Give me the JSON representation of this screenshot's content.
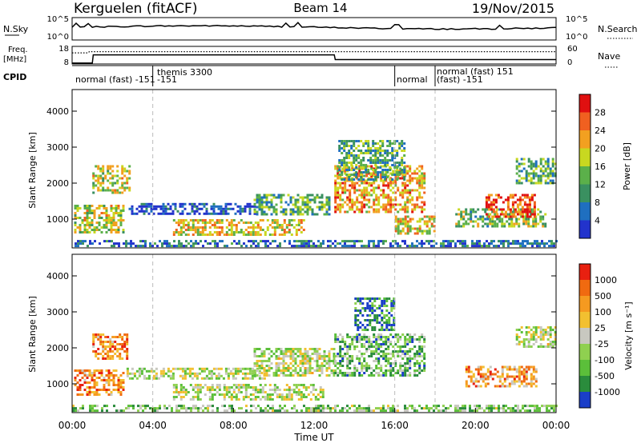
{
  "header": {
    "station": "Kerguelen (fitACF)",
    "beam": "Beam 14",
    "date": "19/Nov/2015"
  },
  "chart_data": [
    {
      "panel": "noise",
      "type": "line",
      "left_label": "N.Sky",
      "left_ticks": [
        "10^5",
        "10^0"
      ],
      "right_ticks": [
        "10^5",
        "10^0"
      ],
      "right_legend": "N.Search"
    },
    {
      "panel": "frequency-nave",
      "type": "line",
      "left_label": "Freq.",
      "left_unit": "[MHz]",
      "left_ticks": [
        18,
        8
      ],
      "right_ticks": [
        60,
        0
      ],
      "right_legend": "Nave",
      "freq_series": {
        "x": [
          0,
          1.0,
          1.05,
          13.0,
          13.05,
          24
        ],
        "y": [
          8.5,
          8.5,
          13.2,
          13.2,
          10.5,
          10.5
        ]
      },
      "nave_series": {
        "x": [
          0,
          0.8,
          0.85,
          24
        ],
        "y": [
          38,
          38,
          42,
          42
        ]
      }
    },
    {
      "panel": "cpid",
      "type": "table",
      "label": "CPID",
      "modes": [
        {
          "line1": "normal (fast) -151",
          "line2": ""
        },
        {
          "line1": "themis 3300",
          "line2": "-151"
        },
        {
          "line1": "normal",
          "line2": ""
        },
        {
          "line1": "normal (fast) 151",
          "line2": "(fast) -151"
        }
      ],
      "mode_boundaries_h": [
        0,
        4,
        16,
        18,
        24
      ]
    },
    {
      "panel": "power",
      "type": "heatmap",
      "ylabel": "Slant Range [km]",
      "yticks": [
        1000,
        2000,
        3000,
        4000
      ],
      "ylim": [
        200,
        4600
      ],
      "xlim_h": [
        0,
        24
      ],
      "colorbar_label": "Power [dB]",
      "colorbar_ticks": [
        4,
        8,
        12,
        16,
        20,
        24,
        28
      ],
      "colorbar_colors": [
        "#2233cc",
        "#1f6fc0",
        "#3a9060",
        "#5bb04a",
        "#c8d820",
        "#f2a020",
        "#f06020",
        "#e01010"
      ],
      "echo_regions": [
        {
          "t0": 0.1,
          "t1": 2.5,
          "r0": 600,
          "r1": 1400,
          "level": 0.55
        },
        {
          "t0": 1.0,
          "t1": 2.8,
          "r0": 1700,
          "r1": 2500,
          "level": 0.55
        },
        {
          "t0": 2.8,
          "t1": 9.0,
          "r0": 1150,
          "r1": 1450,
          "level": 0.1
        },
        {
          "t0": 5.0,
          "t1": 11.5,
          "r0": 550,
          "r1": 1000,
          "level": 0.6
        },
        {
          "t0": 9.0,
          "t1": 12.8,
          "r0": 1100,
          "r1": 1700,
          "level": 0.4
        },
        {
          "t0": 13.0,
          "t1": 17.5,
          "r0": 1200,
          "r1": 2500,
          "level": 0.7
        },
        {
          "t0": 13.2,
          "t1": 16.5,
          "r0": 2100,
          "r1": 3200,
          "level": 0.35
        },
        {
          "t0": 16.0,
          "t1": 18.0,
          "r0": 600,
          "r1": 1100,
          "level": 0.6
        },
        {
          "t0": 19.0,
          "t1": 23.5,
          "r0": 800,
          "r1": 1300,
          "level": 0.45
        },
        {
          "t0": 20.5,
          "t1": 23.0,
          "r0": 1050,
          "r1": 1700,
          "level": 0.85
        },
        {
          "t0": 22.0,
          "t1": 24.0,
          "r0": 2000,
          "r1": 2700,
          "level": 0.4
        },
        {
          "t0": 0.0,
          "t1": 24.0,
          "r0": 250,
          "r1": 420,
          "level": 0.2
        }
      ]
    },
    {
      "panel": "velocity",
      "type": "heatmap",
      "ylabel": "Slant Range [km]",
      "yticks": [
        1000,
        2000,
        3000,
        4000
      ],
      "ylim": [
        200,
        4600
      ],
      "xlim_h": [
        0,
        24
      ],
      "xticks": [
        "00:00",
        "04:00",
        "08:00",
        "12:00",
        "16:00",
        "20:00",
        "00:00"
      ],
      "xlabel": "Time UT",
      "colorbar_label": "Velocity [m s⁻¹]",
      "colorbar_ticks": [
        1000,
        500,
        100,
        25,
        -25,
        -100,
        -500,
        -1000
      ],
      "colorbar_colors": [
        "#1a3ec8",
        "#2a8c3c",
        "#5bbf3a",
        "#8fd050",
        "#c8c8c0",
        "#f2c030",
        "#f59a20",
        "#f06a10",
        "#e82010"
      ],
      "echo_regions": [
        {
          "t0": 0.1,
          "t1": 2.6,
          "r0": 700,
          "r1": 1400,
          "level": 0.75
        },
        {
          "t0": 1.0,
          "t1": 2.7,
          "r0": 1700,
          "r1": 2400,
          "level": 0.75
        },
        {
          "t0": 2.7,
          "t1": 9.5,
          "r0": 1150,
          "r1": 1450,
          "level": 0.45
        },
        {
          "t0": 5.0,
          "t1": 12.5,
          "r0": 550,
          "r1": 1000,
          "level": 0.45
        },
        {
          "t0": 9.0,
          "t1": 13.0,
          "r0": 1200,
          "r1": 2000,
          "level": 0.45
        },
        {
          "t0": 13.0,
          "t1": 17.5,
          "r0": 1200,
          "r1": 2400,
          "level": 0.3
        },
        {
          "t0": 14.0,
          "t1": 16.0,
          "r0": 2500,
          "r1": 3400,
          "level": 0.15
        },
        {
          "t0": 19.5,
          "t1": 23.0,
          "r0": 900,
          "r1": 1500,
          "level": 0.7
        },
        {
          "t0": 22.0,
          "t1": 24.0,
          "r0": 2000,
          "r1": 2600,
          "level": 0.45
        },
        {
          "t0": 0.0,
          "t1": 24.0,
          "r0": 250,
          "r1": 420,
          "level": 0.35
        }
      ]
    }
  ]
}
